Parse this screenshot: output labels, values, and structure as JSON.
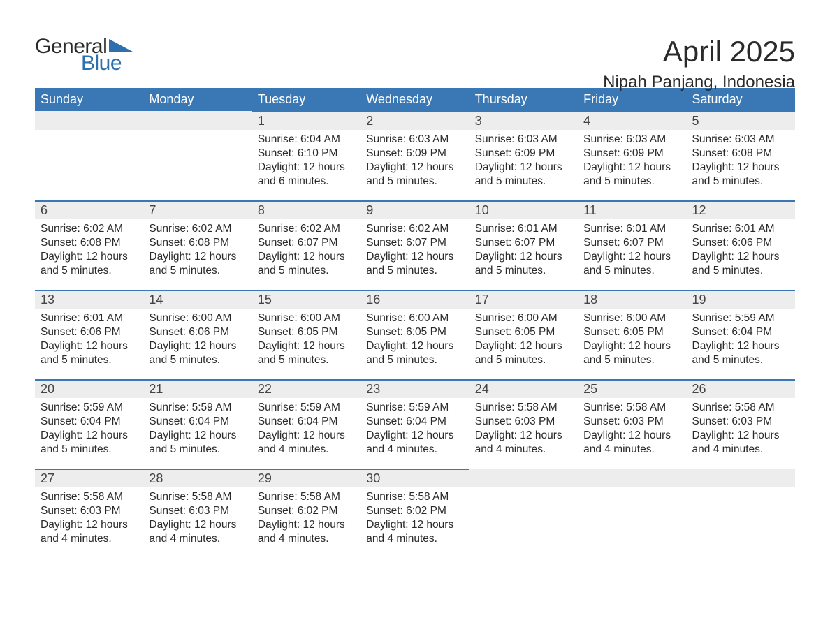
{
  "logo": {
    "text1": "General",
    "text2": "Blue",
    "triangle_color": "#2f6fad"
  },
  "title": "April 2025",
  "subtitle": "Nipah Panjang, Indonesia",
  "colors": {
    "header_bg": "#3a78b5",
    "header_text": "#ffffff",
    "daynum_bg": "#ededed",
    "row_border": "#3a78b5",
    "text": "#2a2a2a",
    "page_bg": "#ffffff"
  },
  "columns": [
    "Sunday",
    "Monday",
    "Tuesday",
    "Wednesday",
    "Thursday",
    "Friday",
    "Saturday"
  ],
  "weeks": [
    [
      null,
      null,
      {
        "n": "1",
        "sr": "6:04 AM",
        "ss": "6:10 PM",
        "dl": "12 hours and 6 minutes."
      },
      {
        "n": "2",
        "sr": "6:03 AM",
        "ss": "6:09 PM",
        "dl": "12 hours and 5 minutes."
      },
      {
        "n": "3",
        "sr": "6:03 AM",
        "ss": "6:09 PM",
        "dl": "12 hours and 5 minutes."
      },
      {
        "n": "4",
        "sr": "6:03 AM",
        "ss": "6:09 PM",
        "dl": "12 hours and 5 minutes."
      },
      {
        "n": "5",
        "sr": "6:03 AM",
        "ss": "6:08 PM",
        "dl": "12 hours and 5 minutes."
      }
    ],
    [
      {
        "n": "6",
        "sr": "6:02 AM",
        "ss": "6:08 PM",
        "dl": "12 hours and 5 minutes."
      },
      {
        "n": "7",
        "sr": "6:02 AM",
        "ss": "6:08 PM",
        "dl": "12 hours and 5 minutes."
      },
      {
        "n": "8",
        "sr": "6:02 AM",
        "ss": "6:07 PM",
        "dl": "12 hours and 5 minutes."
      },
      {
        "n": "9",
        "sr": "6:02 AM",
        "ss": "6:07 PM",
        "dl": "12 hours and 5 minutes."
      },
      {
        "n": "10",
        "sr": "6:01 AM",
        "ss": "6:07 PM",
        "dl": "12 hours and 5 minutes."
      },
      {
        "n": "11",
        "sr": "6:01 AM",
        "ss": "6:07 PM",
        "dl": "12 hours and 5 minutes."
      },
      {
        "n": "12",
        "sr": "6:01 AM",
        "ss": "6:06 PM",
        "dl": "12 hours and 5 minutes."
      }
    ],
    [
      {
        "n": "13",
        "sr": "6:01 AM",
        "ss": "6:06 PM",
        "dl": "12 hours and 5 minutes."
      },
      {
        "n": "14",
        "sr": "6:00 AM",
        "ss": "6:06 PM",
        "dl": "12 hours and 5 minutes."
      },
      {
        "n": "15",
        "sr": "6:00 AM",
        "ss": "6:05 PM",
        "dl": "12 hours and 5 minutes."
      },
      {
        "n": "16",
        "sr": "6:00 AM",
        "ss": "6:05 PM",
        "dl": "12 hours and 5 minutes."
      },
      {
        "n": "17",
        "sr": "6:00 AM",
        "ss": "6:05 PM",
        "dl": "12 hours and 5 minutes."
      },
      {
        "n": "18",
        "sr": "6:00 AM",
        "ss": "6:05 PM",
        "dl": "12 hours and 5 minutes."
      },
      {
        "n": "19",
        "sr": "5:59 AM",
        "ss": "6:04 PM",
        "dl": "12 hours and 5 minutes."
      }
    ],
    [
      {
        "n": "20",
        "sr": "5:59 AM",
        "ss": "6:04 PM",
        "dl": "12 hours and 5 minutes."
      },
      {
        "n": "21",
        "sr": "5:59 AM",
        "ss": "6:04 PM",
        "dl": "12 hours and 5 minutes."
      },
      {
        "n": "22",
        "sr": "5:59 AM",
        "ss": "6:04 PM",
        "dl": "12 hours and 4 minutes."
      },
      {
        "n": "23",
        "sr": "5:59 AM",
        "ss": "6:04 PM",
        "dl": "12 hours and 4 minutes."
      },
      {
        "n": "24",
        "sr": "5:58 AM",
        "ss": "6:03 PM",
        "dl": "12 hours and 4 minutes."
      },
      {
        "n": "25",
        "sr": "5:58 AM",
        "ss": "6:03 PM",
        "dl": "12 hours and 4 minutes."
      },
      {
        "n": "26",
        "sr": "5:58 AM",
        "ss": "6:03 PM",
        "dl": "12 hours and 4 minutes."
      }
    ],
    [
      {
        "n": "27",
        "sr": "5:58 AM",
        "ss": "6:03 PM",
        "dl": "12 hours and 4 minutes."
      },
      {
        "n": "28",
        "sr": "5:58 AM",
        "ss": "6:03 PM",
        "dl": "12 hours and 4 minutes."
      },
      {
        "n": "29",
        "sr": "5:58 AM",
        "ss": "6:02 PM",
        "dl": "12 hours and 4 minutes."
      },
      {
        "n": "30",
        "sr": "5:58 AM",
        "ss": "6:02 PM",
        "dl": "12 hours and 4 minutes."
      },
      null,
      null,
      null
    ]
  ],
  "labels": {
    "sunrise": "Sunrise: ",
    "sunset": "Sunset: ",
    "daylight": "Daylight: "
  }
}
